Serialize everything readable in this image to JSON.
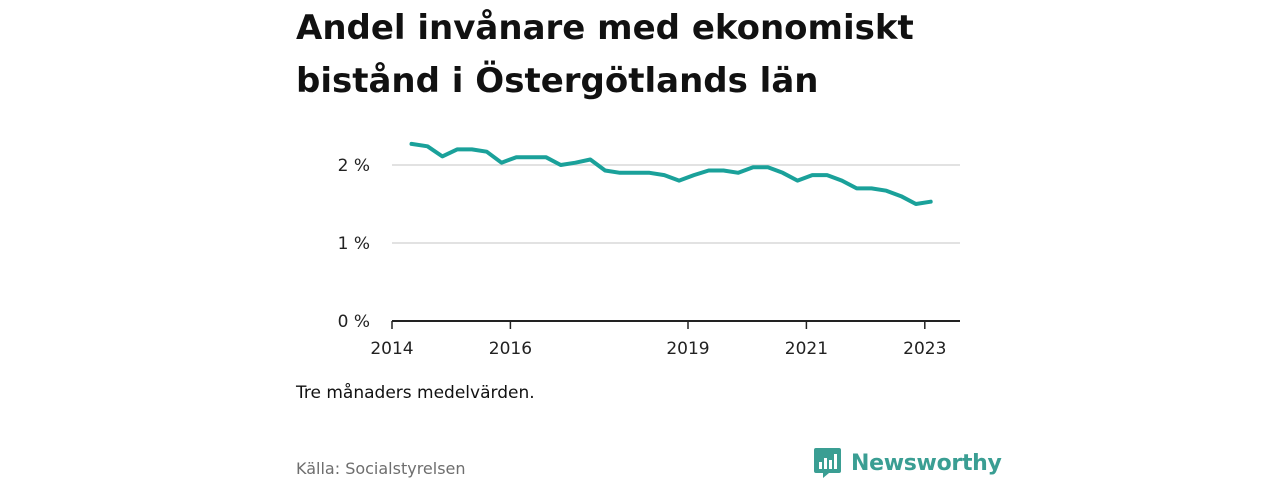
{
  "header": {
    "title_line1": "Andel invånare med ekonomiskt",
    "title_line2": "bistånd i Östergötlands län"
  },
  "footer": {
    "note": "Tre månaders medelvärden.",
    "source": "Källa: Socialstyrelsen",
    "brand": "Newsworthy",
    "brand_icon": "bar-chart-speech-bubble-icon"
  },
  "colors": {
    "line": "#1aa19a",
    "brand": "#3a9e93",
    "grid": "#d9d9d9",
    "axis": "#222222"
  },
  "chart_data": {
    "type": "line",
    "title": "Andel invånare med ekonomiskt bistånd i Östergötlands län",
    "xlabel": "",
    "ylabel": "",
    "ylim": [
      0,
      2.5
    ],
    "xlim": [
      2014,
      2023.6
    ],
    "y_ticks": [
      0,
      1,
      2
    ],
    "y_tick_labels": [
      "0 %",
      "1 %",
      "2 %"
    ],
    "x_ticks": [
      2014,
      2016,
      2019,
      2021,
      2023
    ],
    "x_tick_labels": [
      "2014",
      "2016",
      "2019",
      "2021",
      "2023"
    ],
    "grid": "horizontal",
    "series": [
      {
        "values": [
          {
            "x": 2014.33,
            "y": 2.27
          },
          {
            "x": 2014.6,
            "y": 2.24
          },
          {
            "x": 2014.85,
            "y": 2.11
          },
          {
            "x": 2015.1,
            "y": 2.2
          },
          {
            "x": 2015.35,
            "y": 2.2
          },
          {
            "x": 2015.6,
            "y": 2.17
          },
          {
            "x": 2015.85,
            "y": 2.03
          },
          {
            "x": 2016.1,
            "y": 2.1
          },
          {
            "x": 2016.35,
            "y": 2.1
          },
          {
            "x": 2016.6,
            "y": 2.1
          },
          {
            "x": 2016.85,
            "y": 2.0
          },
          {
            "x": 2017.1,
            "y": 2.03
          },
          {
            "x": 2017.35,
            "y": 2.07
          },
          {
            "x": 2017.6,
            "y": 1.93
          },
          {
            "x": 2017.85,
            "y": 1.9
          },
          {
            "x": 2018.1,
            "y": 1.9
          },
          {
            "x": 2018.35,
            "y": 1.9
          },
          {
            "x": 2018.6,
            "y": 1.87
          },
          {
            "x": 2018.85,
            "y": 1.8
          },
          {
            "x": 2019.1,
            "y": 1.87
          },
          {
            "x": 2019.35,
            "y": 1.93
          },
          {
            "x": 2019.6,
            "y": 1.93
          },
          {
            "x": 2019.85,
            "y": 1.9
          },
          {
            "x": 2020.1,
            "y": 1.97
          },
          {
            "x": 2020.35,
            "y": 1.97
          },
          {
            "x": 2020.6,
            "y": 1.9
          },
          {
            "x": 2020.85,
            "y": 1.8
          },
          {
            "x": 2021.1,
            "y": 1.87
          },
          {
            "x": 2021.35,
            "y": 1.87
          },
          {
            "x": 2021.6,
            "y": 1.8
          },
          {
            "x": 2021.85,
            "y": 1.7
          },
          {
            "x": 2022.1,
            "y": 1.7
          },
          {
            "x": 2022.35,
            "y": 1.67
          },
          {
            "x": 2022.6,
            "y": 1.6
          },
          {
            "x": 2022.85,
            "y": 1.5
          },
          {
            "x": 2023.1,
            "y": 1.53
          }
        ]
      }
    ]
  }
}
